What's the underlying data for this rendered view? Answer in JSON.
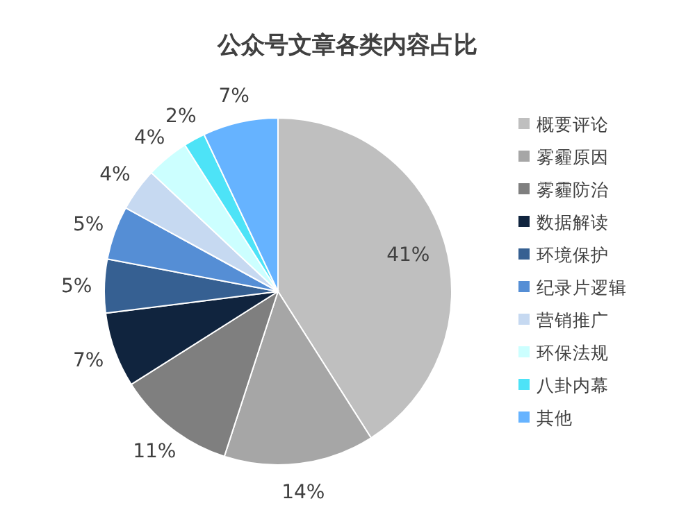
{
  "chart_data": {
    "type": "pie",
    "title": "公众号文章各类内容占比",
    "categories": [
      "概要评论",
      "雾霾原因",
      "雾霾防治",
      "数据解读",
      "环境保护",
      "纪录片逻辑",
      "营销推广",
      "环保法规",
      "八卦内幕",
      "其他"
    ],
    "values": [
      41,
      14,
      11,
      7,
      5,
      5,
      4,
      4,
      2,
      7
    ],
    "colors": [
      "#bfbfbf",
      "#a6a6a6",
      "#7f7f7f",
      "#10243e",
      "#366092",
      "#558ed5",
      "#c6d9f1",
      "#ccffff",
      "#4de3f7",
      "#66b3ff"
    ],
    "value_labels": [
      "41%",
      "14%",
      "11%",
      "7%",
      "5%",
      "5%",
      "4%",
      "4%",
      "2%",
      "7%"
    ],
    "legend": "right"
  }
}
